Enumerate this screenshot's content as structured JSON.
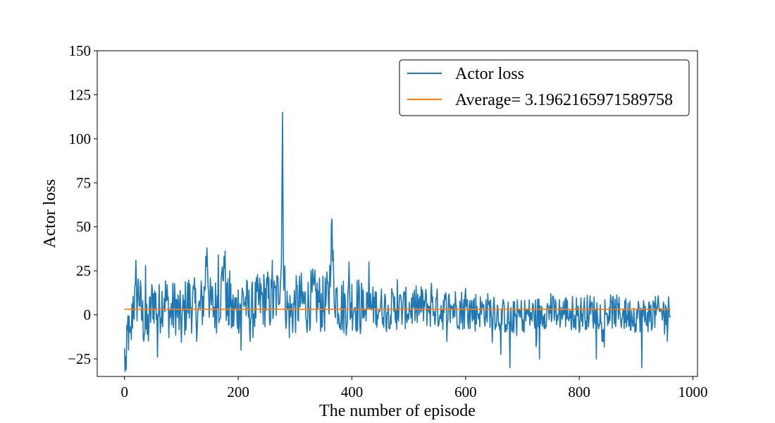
{
  "chart_data": {
    "type": "line",
    "xlabel": "The number of episode",
    "ylabel": "Actor loss",
    "xlim": [
      -48,
      1008
    ],
    "ylim": [
      -35,
      150
    ],
    "xticks": [
      0,
      200,
      400,
      600,
      800,
      1000
    ],
    "yticks": [
      -25,
      0,
      25,
      50,
      75,
      100,
      125,
      150
    ],
    "xtick_labels": [
      "0",
      "200",
      "400",
      "600",
      "800",
      "1000"
    ],
    "ytick_labels": [
      "−25",
      "0",
      "25",
      "50",
      "75",
      "100",
      "125",
      "150"
    ],
    "grid": false,
    "legend_position": "top-right",
    "series": [
      {
        "name": "Actor loss",
        "color": "#1f77b4",
        "x_range": [
          0,
          960
        ],
        "profile": [
          [
            0,
            -24
          ],
          [
            3,
            -30
          ],
          [
            6,
            -6
          ],
          [
            10,
            -20
          ],
          [
            15,
            8
          ],
          [
            20,
            5
          ],
          [
            25,
            15
          ],
          [
            30,
            0
          ],
          [
            40,
            -10
          ],
          [
            50,
            10
          ],
          [
            60,
            2
          ],
          [
            70,
            12
          ],
          [
            80,
            0
          ],
          [
            90,
            5
          ],
          [
            100,
            -5
          ],
          [
            110,
            8
          ],
          [
            120,
            6
          ],
          [
            130,
            0
          ],
          [
            140,
            10
          ],
          [
            145,
            38
          ],
          [
            150,
            5
          ],
          [
            160,
            5
          ],
          [
            170,
            12
          ],
          [
            175,
            33
          ],
          [
            180,
            5
          ],
          [
            190,
            0
          ],
          [
            200,
            5
          ],
          [
            210,
            10
          ],
          [
            220,
            0
          ],
          [
            230,
            5
          ],
          [
            240,
            8
          ],
          [
            250,
            10
          ],
          [
            260,
            5
          ],
          [
            270,
            12
          ],
          [
            276,
            30
          ],
          [
            278,
            115
          ],
          [
            280,
            20
          ],
          [
            285,
            5
          ],
          [
            290,
            0
          ],
          [
            300,
            5
          ],
          [
            310,
            8
          ],
          [
            320,
            5
          ],
          [
            330,
            10
          ],
          [
            340,
            8
          ],
          [
            350,
            5
          ],
          [
            360,
            10
          ],
          [
            364,
            52
          ],
          [
            368,
            15
          ],
          [
            380,
            5
          ],
          [
            390,
            5
          ],
          [
            400,
            8
          ],
          [
            420,
            3
          ],
          [
            440,
            5
          ],
          [
            460,
            4
          ],
          [
            480,
            3
          ],
          [
            500,
            4
          ],
          [
            520,
            5
          ],
          [
            540,
            4
          ],
          [
            560,
            3
          ],
          [
            580,
            4
          ],
          [
            600,
            3
          ],
          [
            620,
            2
          ],
          [
            640,
            3
          ],
          [
            660,
            0
          ],
          [
            680,
            -2
          ],
          [
            700,
            0
          ],
          [
            720,
            0
          ],
          [
            740,
            2
          ],
          [
            760,
            1
          ],
          [
            780,
            2
          ],
          [
            800,
            1
          ],
          [
            820,
            2
          ],
          [
            840,
            1
          ],
          [
            860,
            2
          ],
          [
            880,
            0
          ],
          [
            900,
            0
          ],
          [
            920,
            0
          ],
          [
            940,
            1
          ],
          [
            960,
            2
          ]
        ],
        "spikes": [
          [
            3,
            -31
          ],
          [
            20,
            31
          ],
          [
            37,
            28
          ],
          [
            58,
            -24
          ],
          [
            145,
            38
          ],
          [
            165,
            34
          ],
          [
            175,
            33
          ],
          [
            185,
            25
          ],
          [
            205,
            -20
          ],
          [
            260,
            31
          ],
          [
            278,
            115
          ],
          [
            364,
            52
          ],
          [
            395,
            30
          ],
          [
            430,
            30
          ],
          [
            480,
            20
          ],
          [
            540,
            18
          ],
          [
            600,
            15
          ],
          [
            650,
            10
          ],
          [
            678,
            -30
          ],
          [
            730,
            -25
          ],
          [
            750,
            12
          ],
          [
            800,
            -10
          ],
          [
            830,
            -25
          ],
          [
            880,
            8
          ],
          [
            910,
            -30
          ],
          [
            930,
            8
          ],
          [
            955,
            -15
          ]
        ]
      },
      {
        "name": "Average= 3.1962165971589758",
        "color": "#ff7f0e",
        "x": [
          0,
          960
        ],
        "y": [
          3.1962165971589758,
          3.1962165971589758
        ]
      }
    ]
  }
}
